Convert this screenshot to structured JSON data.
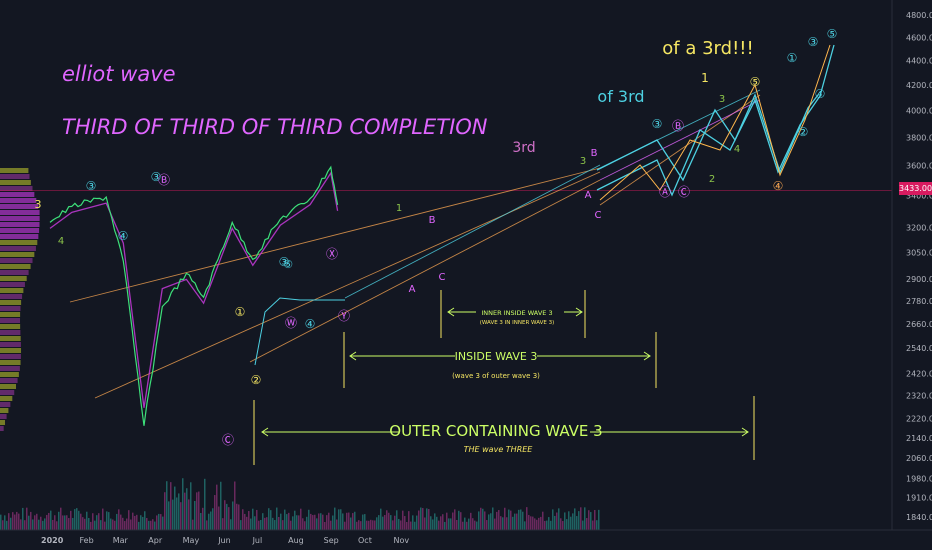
{
  "chart_data": {
    "type": "line",
    "title": "elliot wave",
    "subtitle": "THIRD OF THIRD OF THIRD COMPLETION",
    "x_axis": {
      "tick_labels": [
        "2020",
        "Feb",
        "Mar",
        "Apr",
        "May",
        "Jun",
        "Jul",
        "Aug",
        "Sep",
        "Oct",
        "Nov"
      ]
    },
    "y_axis": {
      "scale": "log",
      "ylim": [
        1780,
        4850
      ],
      "tick_labels": [
        "4800.00",
        "4600.00",
        "4400.00",
        "4200.00",
        "4000.00",
        "3800.00",
        "3600.00",
        "3400.00",
        "3200.00",
        "3050.00",
        "2900.00",
        "2780.00",
        "2660.00",
        "2540.00",
        "2420.00",
        "2320.00",
        "2220.00",
        "2140.00",
        "2060.00",
        "1980.00",
        "1910.00",
        "1840.00"
      ],
      "tick_values": [
        4800,
        4600,
        4400,
        4200,
        4000,
        3800,
        3600,
        3400,
        3200,
        3050,
        2900,
        2780,
        2660,
        2540,
        2420,
        2320,
        2220,
        2140,
        2060,
        1980,
        1910,
        1840
      ]
    },
    "last_price": "3433.00",
    "series": [
      {
        "x": [
          "2020-01-01",
          "2020-01-20",
          "2020-02-19",
          "2020-03-05",
          "2020-03-23",
          "2020-04-08",
          "2020-04-29",
          "2020-05-14",
          "2020-06-08",
          "2020-06-26",
          "2020-07-20",
          "2020-08-15",
          "2020-09-02",
          "2020-09-08"
        ],
        "values": [
          3230,
          3330,
          3390,
          3000,
          2190,
          2750,
          2930,
          2800,
          3230,
          3010,
          3250,
          3380,
          3590,
          3340
        ]
      }
    ],
    "annotations": {
      "wave_labels": [
        "3",
        "4",
        "③",
        "④",
        "③",
        "Ⓑ",
        "①",
        "②",
        "③",
        "④",
        "⑤",
        "Ⓦ",
        "Ⓧ",
        "Ⓨ",
        "Ⓒ",
        "1",
        "B",
        "A",
        "C",
        "3",
        "B",
        "A",
        "C",
        "③",
        "Ⓑ",
        "Ⓐ",
        "Ⓒ",
        "1",
        "2",
        "3",
        "4",
        "④",
        "⑤",
        "①",
        "②",
        "③",
        "④",
        "⑤",
        "3rd",
        "of 3rd",
        "of a 3rd!!!"
      ],
      "outer": {
        "label": "OUTER CONTAINING WAVE 3",
        "sub": "THE wave THREE"
      },
      "inside": {
        "label": "INSIDE WAVE 3",
        "sub": "(wave 3 of outer wave 3)"
      },
      "inner": {
        "label": "INNER INSIDE WAVE 3",
        "sub": "(WAVE 3 IN INNER WAVE 3)"
      }
    }
  },
  "colors": {
    "background": "#131722",
    "price": "#3de07a",
    "ma": "#c43ad8",
    "pink": "#e066ff",
    "cyan": "#4dd0e1",
    "yellow": "#f5e663",
    "green": "#8bc34a",
    "orange": "#f0a050",
    "lime": "#ccff66"
  }
}
